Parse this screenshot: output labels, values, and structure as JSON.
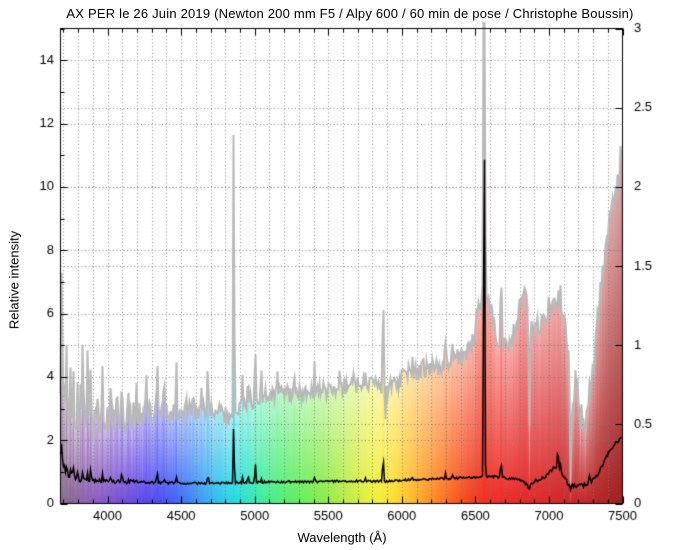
{
  "chart_data": {
    "type": "area",
    "title": "AX PER le 26 Juin 2019 (Newton 200 mm F5 / Alpy 600 / 60 min de pose / Christophe Boussin)",
    "xlabel": "Wavelength (Å)",
    "ylabel_left": "Relative intensity",
    "xlim": [
      3680,
      7500
    ],
    "ylim_left": [
      0,
      15
    ],
    "ylim_right": [
      0,
      3
    ],
    "x_major_ticks": [
      4000,
      4500,
      5000,
      5500,
      6000,
      6500,
      7000,
      7500
    ],
    "x_minor_step": 100,
    "y_left_ticks": [
      0,
      2,
      4,
      6,
      8,
      10,
      12,
      14
    ],
    "y_left_minor_step": 1,
    "y_right_ticks": [
      0,
      0.5,
      1,
      1.5,
      2,
      2.5,
      3
    ],
    "y_right_tick_labels": [
      "0",
      "0.5",
      "1",
      "1.5",
      "2",
      "2.5",
      "3"
    ],
    "grid": {
      "on": true,
      "style": "dotted",
      "color": "#787878"
    },
    "frame_color": "#000000",
    "background": "#ffffff",
    "series": [
      {
        "name": "raw-instrument-spectrum-colored",
        "axis": "left",
        "render": "per-wavelength colored fill with gray top outline",
        "outline_color": "#b9b9b9",
        "floor": 0.7,
        "continuum": [
          [
            3680,
            3.0
          ],
          [
            3720,
            2.75
          ],
          [
            3780,
            2.7
          ],
          [
            3850,
            2.65
          ],
          [
            3950,
            2.6
          ],
          [
            4050,
            2.65
          ],
          [
            4150,
            2.72
          ],
          [
            4250,
            2.82
          ],
          [
            4350,
            2.92
          ],
          [
            4450,
            2.95
          ],
          [
            4550,
            2.9
          ],
          [
            4650,
            2.92
          ],
          [
            4750,
            3.0
          ],
          [
            4830,
            2.7
          ],
          [
            4880,
            2.85
          ],
          [
            4950,
            3.2
          ],
          [
            5050,
            3.35
          ],
          [
            5150,
            3.42
          ],
          [
            5250,
            3.45
          ],
          [
            5350,
            3.5
          ],
          [
            5450,
            3.55
          ],
          [
            5550,
            3.62
          ],
          [
            5650,
            3.7
          ],
          [
            5750,
            3.78
          ],
          [
            5830,
            3.82
          ],
          [
            5900,
            3.55
          ],
          [
            5980,
            3.85
          ],
          [
            6060,
            4.1
          ],
          [
            6150,
            4.25
          ],
          [
            6250,
            4.35
          ],
          [
            6350,
            4.55
          ],
          [
            6450,
            4.8
          ],
          [
            6520,
            5.1
          ],
          [
            6600,
            5.3
          ],
          [
            6680,
            5.05
          ],
          [
            6750,
            5.1
          ],
          [
            6800,
            6.1
          ],
          [
            6840,
            6.6
          ],
          [
            6860,
            6.1
          ],
          [
            6890,
            5.4
          ],
          [
            6930,
            5.6
          ],
          [
            6990,
            5.9
          ],
          [
            7040,
            6.3
          ],
          [
            7080,
            6.15
          ],
          [
            7110,
            5.6
          ],
          [
            7135,
            4.6
          ],
          [
            7160,
            2.6
          ],
          [
            7185,
            4.0
          ],
          [
            7215,
            3.0
          ],
          [
            7245,
            2.7
          ],
          [
            7275,
            3.0
          ],
          [
            7305,
            4.3
          ],
          [
            7335,
            5.9
          ],
          [
            7365,
            7.2
          ],
          [
            7395,
            8.3
          ],
          [
            7425,
            9.2
          ],
          [
            7455,
            9.9
          ],
          [
            7480,
            10.4
          ],
          [
            7500,
            10.8
          ]
        ],
        "lines": [
          [
            3692,
            4.3,
            4
          ],
          [
            3712,
            1.3,
            3
          ],
          [
            3727,
            1.6,
            3
          ],
          [
            3750,
            1.4,
            3
          ],
          [
            3770,
            1.5,
            3
          ],
          [
            3798,
            1.6,
            3
          ],
          [
            3820,
            1.0,
            3
          ],
          [
            3835,
            2.3,
            3
          ],
          [
            3868,
            1.7,
            3
          ],
          [
            3889,
            2.5,
            3
          ],
          [
            3905,
            -1.6,
            2.5
          ],
          [
            3936,
            1.0,
            3
          ],
          [
            3970,
            2.0,
            3
          ],
          [
            4026,
            1.2,
            3
          ],
          [
            4068,
            0.8,
            3
          ],
          [
            4101,
            1.9,
            3
          ],
          [
            4144,
            0.8,
            3
          ],
          [
            4200,
            0.7,
            3
          ],
          [
            4267,
            0.8,
            3
          ],
          [
            4340,
            2.2,
            3
          ],
          [
            4388,
            0.9,
            3
          ],
          [
            4471,
            1.3,
            3
          ],
          [
            4542,
            0.7,
            3
          ],
          [
            4640,
            0.9,
            3
          ],
          [
            4686,
            1.7,
            3
          ],
          [
            4861,
            10.6,
            3
          ],
          [
            4922,
            1.2,
            3
          ],
          [
            4959,
            0.9,
            3
          ],
          [
            5007,
            1.8,
            3
          ],
          [
            5048,
            0.8,
            3
          ],
          [
            5160,
            0.7,
            3
          ],
          [
            5270,
            0.6,
            3
          ],
          [
            5411,
            0.8,
            3
          ],
          [
            5577,
            0.5,
            3
          ],
          [
            5680,
            0.5,
            3
          ],
          [
            5755,
            0.7,
            3
          ],
          [
            5876,
            4.1,
            3
          ],
          [
            5892,
            -0.9,
            2.5
          ],
          [
            6074,
            0.6,
            3
          ],
          [
            6150,
            0.5,
            3
          ],
          [
            6300,
            0.7,
            3
          ],
          [
            6347,
            0.6,
            3
          ],
          [
            6563,
            30,
            3.8
          ],
          [
            6563,
            1.6,
            40
          ],
          [
            6678,
            2.4,
            3
          ],
          [
            6870,
            -3.6,
            4
          ],
          [
            7002,
            0.6,
            4
          ],
          [
            7065,
            1.3,
            3.5
          ],
          [
            7082,
            0.8,
            4
          ],
          [
            7150,
            -3.0,
            3
          ],
          [
            7215,
            -0.6,
            4
          ],
          [
            7250,
            -0.5,
            4
          ],
          [
            7281,
            0.8,
            4
          ]
        ],
        "noise_bands": [
          [
            3680,
            3900,
            0.55,
            0.09,
            2.6
          ],
          [
            3900,
            4300,
            0.45,
            0.08,
            2.4
          ],
          [
            4300,
            4700,
            0.38,
            0.06,
            2.2
          ],
          [
            4700,
            5300,
            0.28,
            0.04,
            2.0
          ],
          [
            5300,
            5900,
            0.27,
            0.04,
            2.0
          ],
          [
            5900,
            6400,
            0.3,
            0.04,
            2.0
          ],
          [
            6400,
            6800,
            0.33,
            0.04,
            2.0
          ],
          [
            6800,
            7300,
            0.33,
            0.04,
            2.0
          ],
          [
            7300,
            7501,
            0.3,
            0.04,
            2.0
          ]
        ],
        "spectral_color_stops": [
          [
            3680,
            "#8a7090"
          ],
          [
            3750,
            "#8a6296"
          ],
          [
            3850,
            "#8f5fae"
          ],
          [
            3950,
            "#8a58c0"
          ],
          [
            4050,
            "#7b50d2"
          ],
          [
            4150,
            "#6b4ae0"
          ],
          [
            4250,
            "#5a46ec"
          ],
          [
            4350,
            "#4a4cf4"
          ],
          [
            4450,
            "#3f5ef8"
          ],
          [
            4550,
            "#3c7cf8"
          ],
          [
            4650,
            "#38a0f4"
          ],
          [
            4750,
            "#2cc0ec"
          ],
          [
            4850,
            "#24d8e4"
          ],
          [
            4950,
            "#2ce4c4"
          ],
          [
            5050,
            "#3cec9c"
          ],
          [
            5150,
            "#4cee7c"
          ],
          [
            5250,
            "#5aee62"
          ],
          [
            5350,
            "#6cee54"
          ],
          [
            5450,
            "#84ec4c"
          ],
          [
            5550,
            "#a2ec46"
          ],
          [
            5650,
            "#c2ee40"
          ],
          [
            5750,
            "#e0f03a"
          ],
          [
            5850,
            "#f4ee34"
          ],
          [
            5950,
            "#fcdc2e"
          ],
          [
            6050,
            "#ffc028"
          ],
          [
            6150,
            "#ffa024"
          ],
          [
            6250,
            "#ff8020"
          ],
          [
            6350,
            "#fb611e"
          ],
          [
            6450,
            "#f6431e"
          ],
          [
            6550,
            "#f23222"
          ],
          [
            6650,
            "#ee2c24"
          ],
          [
            6800,
            "#e62828"
          ],
          [
            7000,
            "#da2828"
          ],
          [
            7200,
            "#c62626"
          ],
          [
            7350,
            "#b42424"
          ],
          [
            7500,
            "#9e2022"
          ]
        ]
      },
      {
        "name": "calibrated-spectrum-black-line",
        "axis": "right",
        "render": "line",
        "color": "#000000",
        "floor": 0.03,
        "continuum": [
          [
            3680,
            0.33
          ],
          [
            3700,
            0.25
          ],
          [
            3730,
            0.19
          ],
          [
            3770,
            0.16
          ],
          [
            3850,
            0.148
          ],
          [
            3950,
            0.142
          ],
          [
            4100,
            0.138
          ],
          [
            4300,
            0.132
          ],
          [
            4500,
            0.128
          ],
          [
            4700,
            0.128
          ],
          [
            4900,
            0.132
          ],
          [
            5100,
            0.136
          ],
          [
            5300,
            0.136
          ],
          [
            5500,
            0.14
          ],
          [
            5700,
            0.142
          ],
          [
            5900,
            0.14
          ],
          [
            6050,
            0.15
          ],
          [
            6250,
            0.156
          ],
          [
            6450,
            0.163
          ],
          [
            6563,
            0.17
          ],
          [
            6650,
            0.168
          ],
          [
            6760,
            0.155
          ],
          [
            6820,
            0.145
          ],
          [
            6866,
            0.108
          ],
          [
            6920,
            0.148
          ],
          [
            6970,
            0.162
          ],
          [
            7020,
            0.21
          ],
          [
            7060,
            0.235
          ],
          [
            7100,
            0.17
          ],
          [
            7140,
            0.118
          ],
          [
            7185,
            0.108
          ],
          [
            7220,
            0.128
          ],
          [
            7260,
            0.122
          ],
          [
            7300,
            0.142
          ],
          [
            7340,
            0.19
          ],
          [
            7380,
            0.27
          ],
          [
            7420,
            0.34
          ],
          [
            7460,
            0.385
          ],
          [
            7500,
            0.415
          ]
        ],
        "lines": [
          [
            3692,
            0.1,
            4
          ],
          [
            3727,
            0.05,
            3
          ],
          [
            3750,
            0.042,
            3
          ],
          [
            3770,
            0.046,
            3
          ],
          [
            3798,
            0.05,
            3
          ],
          [
            3835,
            0.062,
            3
          ],
          [
            3868,
            0.045,
            3
          ],
          [
            3889,
            0.065,
            3
          ],
          [
            3970,
            0.06,
            3
          ],
          [
            4026,
            0.035,
            3
          ],
          [
            4101,
            0.068,
            3
          ],
          [
            4144,
            0.02,
            3
          ],
          [
            4340,
            0.092,
            3
          ],
          [
            4388,
            0.022,
            3
          ],
          [
            4471,
            0.045,
            3
          ],
          [
            4686,
            0.07,
            3
          ],
          [
            4861,
            0.4,
            3
          ],
          [
            4922,
            0.03,
            3
          ],
          [
            4959,
            0.045,
            3
          ],
          [
            5007,
            0.13,
            3
          ],
          [
            5048,
            0.02,
            3
          ],
          [
            5411,
            0.025,
            3
          ],
          [
            5755,
            0.03,
            3
          ],
          [
            5876,
            0.19,
            3
          ],
          [
            6074,
            0.02,
            3
          ],
          [
            6300,
            0.028,
            3
          ],
          [
            6347,
            0.02,
            3
          ],
          [
            6563,
            2.53,
            3.5
          ],
          [
            6678,
            0.115,
            3
          ],
          [
            6868,
            -0.03,
            4
          ],
          [
            7065,
            0.115,
            3.5
          ],
          [
            7082,
            0.05,
            4
          ],
          [
            7150,
            -0.04,
            3
          ],
          [
            7190,
            -0.02,
            4
          ],
          [
            7235,
            -0.02,
            5
          ],
          [
            7281,
            0.05,
            4
          ]
        ],
        "noise_bands": [
          [
            3680,
            3820,
            0.028,
            0,
            0
          ],
          [
            3820,
            4200,
            0.013,
            0,
            0
          ],
          [
            4200,
            6900,
            0.007,
            0,
            0
          ],
          [
            6900,
            7320,
            0.012,
            0,
            0
          ],
          [
            7320,
            7501,
            0.01,
            0,
            0
          ]
        ]
      }
    ]
  }
}
